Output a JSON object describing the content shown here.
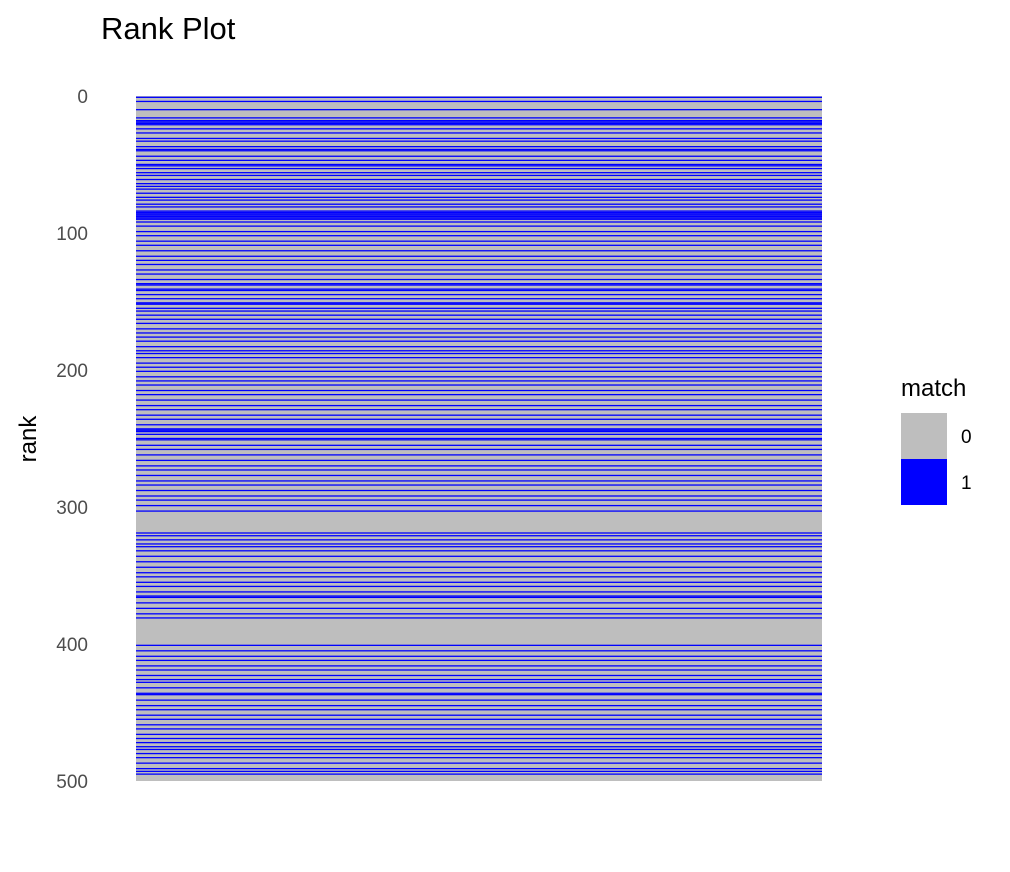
{
  "chart_data": {
    "type": "heatmap",
    "title": "Rank Plot",
    "xlabel": "",
    "ylabel": "rank",
    "ylim": [
      0,
      500
    ],
    "y_reversed": true,
    "y_ticks": [
      "0",
      "100",
      "200",
      "300",
      "400",
      "500"
    ],
    "grid": false,
    "legend": {
      "title": "match",
      "position": "right",
      "entries": [
        {
          "label": "0",
          "value": 0,
          "color": "#BEBEBE"
        },
        {
          "label": "1",
          "value": 1,
          "color": "#0000FF"
        }
      ]
    },
    "match_ranks": [
      1,
      4,
      10,
      16,
      18,
      19,
      20,
      21,
      24,
      27,
      31,
      33,
      37,
      39,
      40,
      44,
      47,
      50,
      51,
      53,
      56,
      58,
      61,
      64,
      66,
      68,
      71,
      74,
      76,
      79,
      81,
      84,
      85,
      86,
      87,
      88,
      89,
      90,
      92,
      95,
      99,
      102,
      106,
      109,
      113,
      117,
      120,
      123,
      127,
      130,
      134,
      137,
      138,
      141,
      142,
      145,
      148,
      151,
      152,
      155,
      157,
      160,
      163,
      166,
      170,
      173,
      176,
      179,
      183,
      186,
      188,
      191,
      195,
      198,
      201,
      205,
      208,
      211,
      215,
      218,
      222,
      226,
      229,
      233,
      236,
      240,
      243,
      244,
      245,
      247,
      250,
      251,
      255,
      258,
      262,
      266,
      270,
      273,
      277,
      281,
      284,
      288,
      292,
      295,
      299,
      303,
      319,
      321,
      324,
      327,
      329,
      332,
      336,
      340,
      344,
      348,
      351,
      355,
      358,
      362,
      365,
      366,
      370,
      374,
      378,
      381,
      401,
      405,
      409,
      412,
      416,
      419,
      423,
      426,
      428,
      432,
      436,
      437,
      441,
      445,
      448,
      452,
      455,
      459,
      462,
      466,
      469,
      472,
      475,
      477,
      480,
      483,
      487,
      491,
      493,
      495
    ]
  }
}
